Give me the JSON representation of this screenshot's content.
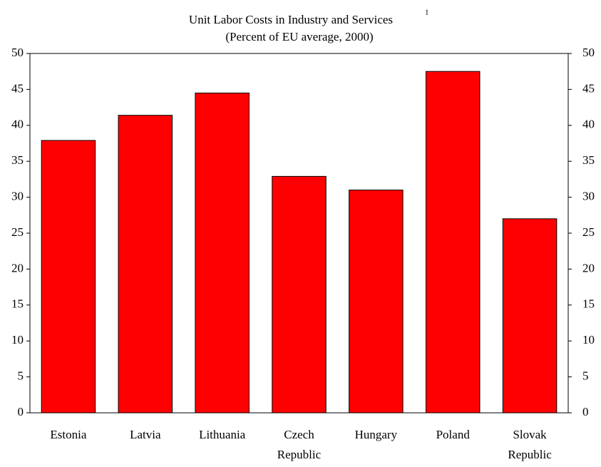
{
  "chart_data": {
    "type": "bar",
    "title": "Unit Labor Costs in Industry and Services",
    "title_footnote": "1",
    "subtitle": "(Percent of EU average, 2000)",
    "categories": [
      "Estonia",
      "Latvia",
      "Lithuania",
      "Czech Republic",
      "Hungary",
      "Poland",
      "Slovak Republic"
    ],
    "values": [
      37.9,
      41.4,
      44.5,
      32.9,
      31.0,
      47.5,
      27.0
    ],
    "color": "#ff0000",
    "ylim": [
      0,
      50
    ],
    "yticks": [
      0,
      5,
      10,
      15,
      20,
      25,
      30,
      35,
      40,
      45,
      50
    ],
    "y2lim": [
      0,
      50
    ],
    "y2ticks": [
      0,
      5,
      10,
      15,
      20,
      25,
      30,
      35,
      40,
      45,
      50
    ],
    "grid": false
  }
}
